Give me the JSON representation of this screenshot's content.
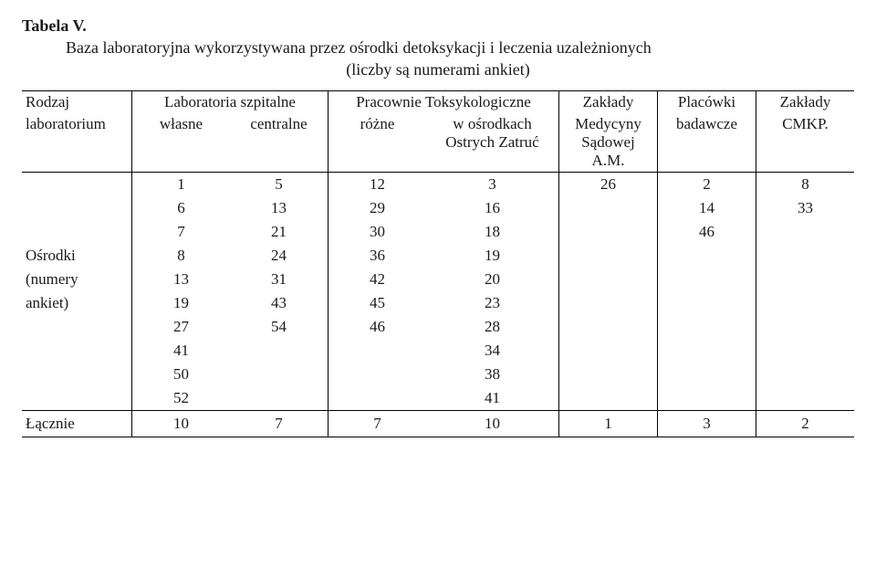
{
  "title": {
    "label": "Tabela V.",
    "caption": "Baza laboratoryjna wykorzystywana przez ośrodki detoksykacji i leczenia uzależnionych",
    "subcaption": "(liczby są numerami ankiet)"
  },
  "table": {
    "type": "table",
    "header": {
      "col1_a": "Rodzaj",
      "col1_b": "laboratorium",
      "group1": "Laboratoria szpitalne",
      "group1_a": "własne",
      "group1_b": "centralne",
      "group2": "Pracownie Toksykologiczne",
      "group2_a": "różne",
      "group2_b_1": "w ośrodkach",
      "group2_b_2": "Ostrych Zatruć",
      "col5_a": "Zakłady",
      "col5_b": "Medycyny",
      "col5_c": "Sądowej A.M.",
      "col6_a": "Placówki",
      "col6_b": "badawcze",
      "col7_a": "Zakłady",
      "col7_b": "CMKP."
    },
    "row_label_parts": [
      "Ośrodki",
      "(numery",
      "ankiet)"
    ],
    "rows": [
      {
        "c1": "1",
        "c2": "5",
        "c3": "12",
        "c4": "3",
        "c5": "26",
        "c6": "2",
        "c7": "8"
      },
      {
        "c1": "6",
        "c2": "13",
        "c3": "29",
        "c4": "16",
        "c5": "",
        "c6": "14",
        "c7": "33"
      },
      {
        "c1": "7",
        "c2": "21",
        "c3": "30",
        "c4": "18",
        "c5": "",
        "c6": "46",
        "c7": ""
      },
      {
        "c1": "8",
        "c2": "24",
        "c3": "36",
        "c4": "19",
        "c5": "",
        "c6": "",
        "c7": ""
      },
      {
        "c1": "13",
        "c2": "31",
        "c3": "42",
        "c4": "20",
        "c5": "",
        "c6": "",
        "c7": ""
      },
      {
        "c1": "19",
        "c2": "43",
        "c3": "45",
        "c4": "23",
        "c5": "",
        "c6": "",
        "c7": ""
      },
      {
        "c1": "27",
        "c2": "54",
        "c3": "46",
        "c4": "28",
        "c5": "",
        "c6": "",
        "c7": ""
      },
      {
        "c1": "41",
        "c2": "",
        "c3": "",
        "c4": "34",
        "c5": "",
        "c6": "",
        "c7": ""
      },
      {
        "c1": "50",
        "c2": "",
        "c3": "",
        "c4": "38",
        "c5": "",
        "c6": "",
        "c7": ""
      },
      {
        "c1": "52",
        "c2": "",
        "c3": "",
        "c4": "41",
        "c5": "",
        "c6": "",
        "c7": ""
      }
    ],
    "summary": {
      "label": "Łącznie",
      "c1": "10",
      "c2": "7",
      "c3": "7",
      "c4": "10",
      "c5": "1",
      "c6": "3",
      "c7": "2"
    },
    "style": {
      "background_color": "#ffffff",
      "text_color": "#1a1a1a",
      "border_color": "#000000",
      "font_family": "Times New Roman",
      "header_fontsize": 17,
      "body_fontsize": 17
    }
  }
}
